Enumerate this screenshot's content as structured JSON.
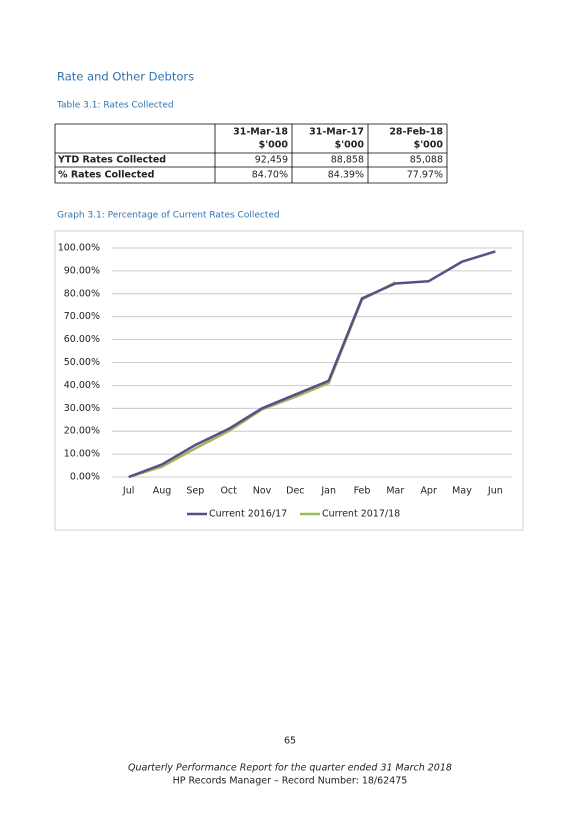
{
  "section_title": "Rate and Other Debtors",
  "table_caption": "Table 3.1:  Rates Collected",
  "table": {
    "columns": [
      {
        "date": "31-Mar-18",
        "unit": "$'000"
      },
      {
        "date": "31-Mar-17",
        "unit": "$'000"
      },
      {
        "date": "28-Feb-18",
        "unit": "$'000"
      }
    ],
    "rows": [
      [
        "YTD Rates Collected",
        "92,459",
        "88,858",
        "85,088"
      ],
      [
        "% Rates Collected",
        "84.70%",
        "84.39%",
        "77.97%"
      ]
    ]
  },
  "graph_caption": "Graph 3.1:  Percentage of Current Rates Collected",
  "chart_data": {
    "type": "line",
    "categories": [
      "Jul",
      "Aug",
      "Sep",
      "Oct",
      "Nov",
      "Dec",
      "Jan",
      "Feb",
      "Mar",
      "Apr",
      "May",
      "Jun"
    ],
    "series": [
      {
        "name": "Current 2016/17",
        "color": "#604a8b",
        "values": [
          0,
          5.5,
          14,
          21,
          30,
          36,
          42,
          78,
          84.5,
          85.5,
          94,
          98.5
        ]
      },
      {
        "name": "Current 2017/18",
        "color": "#9bbb59",
        "values": [
          0,
          4.5,
          12.5,
          20,
          29.5,
          35,
          41,
          77.5,
          85,
          null,
          null,
          null
        ]
      }
    ],
    "ylim": [
      0,
      100
    ],
    "yticks": [
      {
        "value": 0,
        "label": "0.00%"
      },
      {
        "value": 10,
        "label": "10.00%"
      },
      {
        "value": 20,
        "label": "20.00%"
      },
      {
        "value": 30,
        "label": "30.00%"
      },
      {
        "value": 40,
        "label": "40.00%"
      },
      {
        "value": 50,
        "label": "50.00%"
      },
      {
        "value": 60,
        "label": "60.00%"
      },
      {
        "value": 70,
        "label": "70.00%"
      },
      {
        "value": 80,
        "label": "80.00%"
      },
      {
        "value": 90,
        "label": "90.00%"
      },
      {
        "value": 100,
        "label": "100.00%"
      }
    ],
    "grid": true,
    "legend": "bottom"
  },
  "page_number": "65",
  "footer": {
    "line1": "Quarterly Performance Report for the quarter ended 31 March 2018",
    "line2": "HP Records Manager – Record Number: 18/62475"
  }
}
